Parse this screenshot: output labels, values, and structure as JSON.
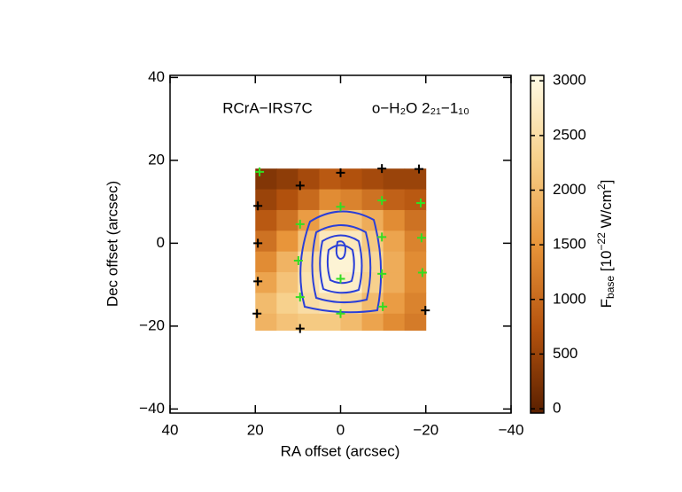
{
  "chart_data": {
    "type": "heatmap",
    "annotations": [
      "RCrA−IRS7C",
      "o−H₂O 2₂₁−1₁₀"
    ],
    "xlabel": "RA offset (arcsec)",
    "ylabel": "Dec offset (arcsec)",
    "xlim": [
      40,
      -40
    ],
    "ylim": [
      -41,
      40.5
    ],
    "xticks": [
      40,
      20,
      0,
      {
        "value": -20,
        "label": "−20"
      },
      {
        "value": -40,
        "label": "−40"
      }
    ],
    "yticks": [
      {
        "value": -40,
        "label": "−40"
      },
      {
        "value": -20,
        "label": "−20"
      },
      0,
      20,
      40
    ],
    "x_edges": [
      20,
      15,
      10,
      5,
      0,
      -5,
      -10,
      -15,
      -20
    ],
    "y_edges": [
      18,
      13,
      8,
      3,
      -2,
      -7,
      -12,
      -17,
      -21
    ],
    "values": [
      [
        300,
        400,
        600,
        800,
        700,
        600,
        500,
        500
      ],
      [
        500,
        700,
        1000,
        1400,
        1300,
        1100,
        900,
        800
      ],
      [
        800,
        1100,
        1600,
        2100,
        2100,
        1800,
        1400,
        1100
      ],
      [
        1100,
        1500,
        2100,
        2700,
        2700,
        2200,
        1700,
        1300
      ],
      [
        1400,
        1900,
        2500,
        2900,
        2900,
        2400,
        1800,
        1400
      ],
      [
        1700,
        2100,
        2600,
        2900,
        2800,
        2300,
        1800,
        1400
      ],
      [
        2000,
        2300,
        2500,
        2600,
        2400,
        2000,
        1600,
        1300
      ],
      [
        1900,
        2100,
        2200,
        2200,
        2000,
        1700,
        1400,
        1200
      ]
    ],
    "colormap": [
      "#5a2000",
      "#b5530e",
      "#e8953a",
      "#f7d08a",
      "#fffbe6"
    ],
    "colorbar_lim": [
      -40,
      3050
    ],
    "colorbar_ticks": [
      0,
      500,
      1000,
      1500,
      2000,
      2500,
      3000
    ],
    "colorbar_label": [
      "F",
      "base",
      " [10",
      "−22",
      " W/cm",
      "2",
      "]"
    ],
    "series": [
      {
        "color": "#000000",
        "x": [
          0,
          9.5,
          -9.7,
          -18.4,
          19.4,
          19.4,
          19.4,
          19.6,
          9.5,
          -19.9
        ],
        "y": [
          17,
          13.9,
          18,
          17.9,
          9,
          0,
          -9.2,
          -17,
          -20.6,
          -16.2
        ]
      },
      {
        "color": "#33dd22",
        "x": [
          19,
          0,
          -9.7,
          -18.8,
          9.5,
          -9.7,
          -19,
          9.9,
          0,
          -9.7,
          -19.2,
          9.5,
          0,
          -9.9
        ],
        "y": [
          17.2,
          8.8,
          10.3,
          9.7,
          4.6,
          1.5,
          1.3,
          -4.2,
          -8.6,
          -7.4,
          -7.1,
          -13,
          -17,
          -15.3
        ]
      }
    ]
  }
}
